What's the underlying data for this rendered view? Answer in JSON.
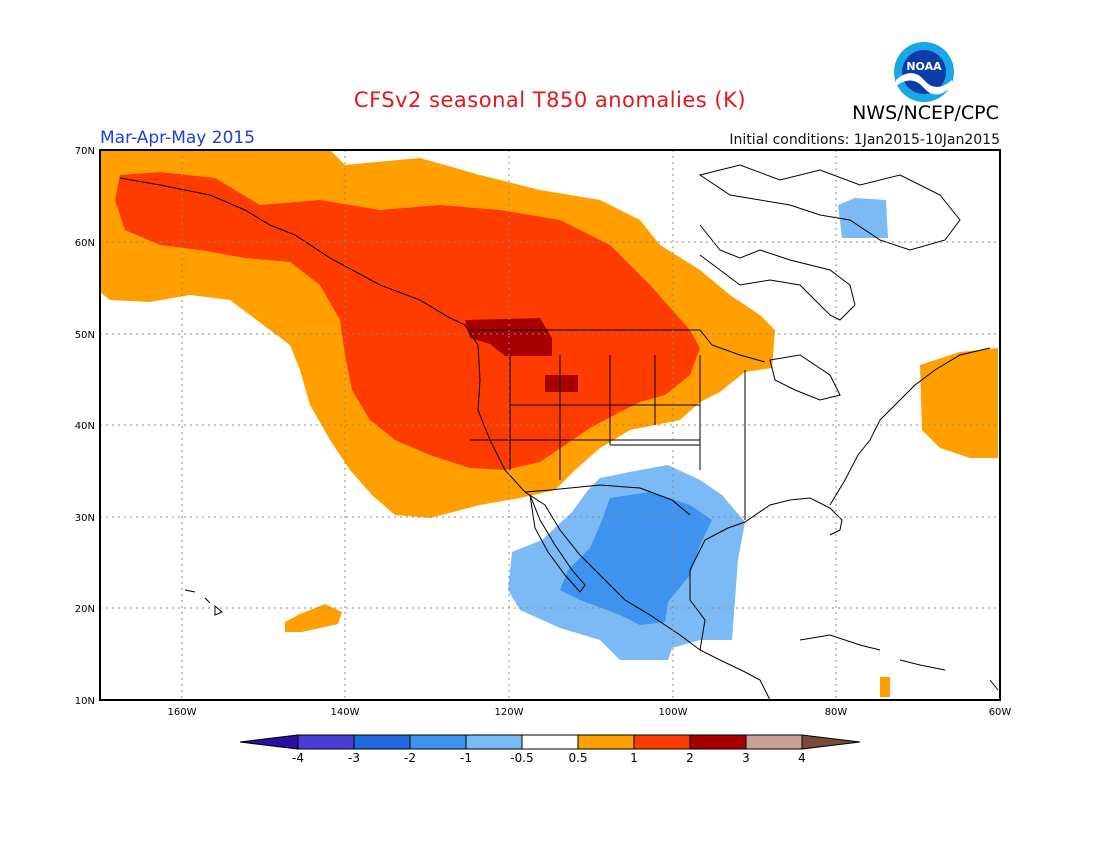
{
  "header": {
    "title": "CFSv2 seasonal T850 anomalies (K)",
    "agency": "NWS/NCEP/CPC",
    "season": "Mar-Apr-May 2015",
    "initial_conditions": "Initial conditions: 1Jan2015-10Jan2015",
    "logo_text": "NOAA"
  },
  "map": {
    "lat_ticks": [
      "70N",
      "60N",
      "50N",
      "40N",
      "30N",
      "20N",
      "10N"
    ],
    "lon_ticks": [
      "160W",
      "140W",
      "120W",
      "100W",
      "80W",
      "60W"
    ],
    "lat_range": [
      10,
      70
    ],
    "lon_range": [
      -170,
      -60
    ],
    "grid": "dotted"
  },
  "legend": {
    "tick_labels": [
      "-4",
      "-3",
      "-2",
      "-1",
      "-0.5",
      "0.5",
      "1",
      "2",
      "3",
      "4"
    ],
    "colors": [
      "#2a0fa5",
      "#4b3cd6",
      "#1f6ae0",
      "#3e93ee",
      "#7bbaf5",
      "#ffffff",
      "#ff9f00",
      "#ff3c00",
      "#a80000",
      "#c8a295",
      "#7a4a3a"
    ]
  },
  "colors": {
    "title": "#e3171b",
    "season": "#1f3fd6",
    "warm_light": "#ff9f00",
    "warm_mid": "#ff3c00",
    "warm_dark": "#a80000",
    "cold_light": "#7bbaf5",
    "cold_mid": "#3e93ee"
  }
}
